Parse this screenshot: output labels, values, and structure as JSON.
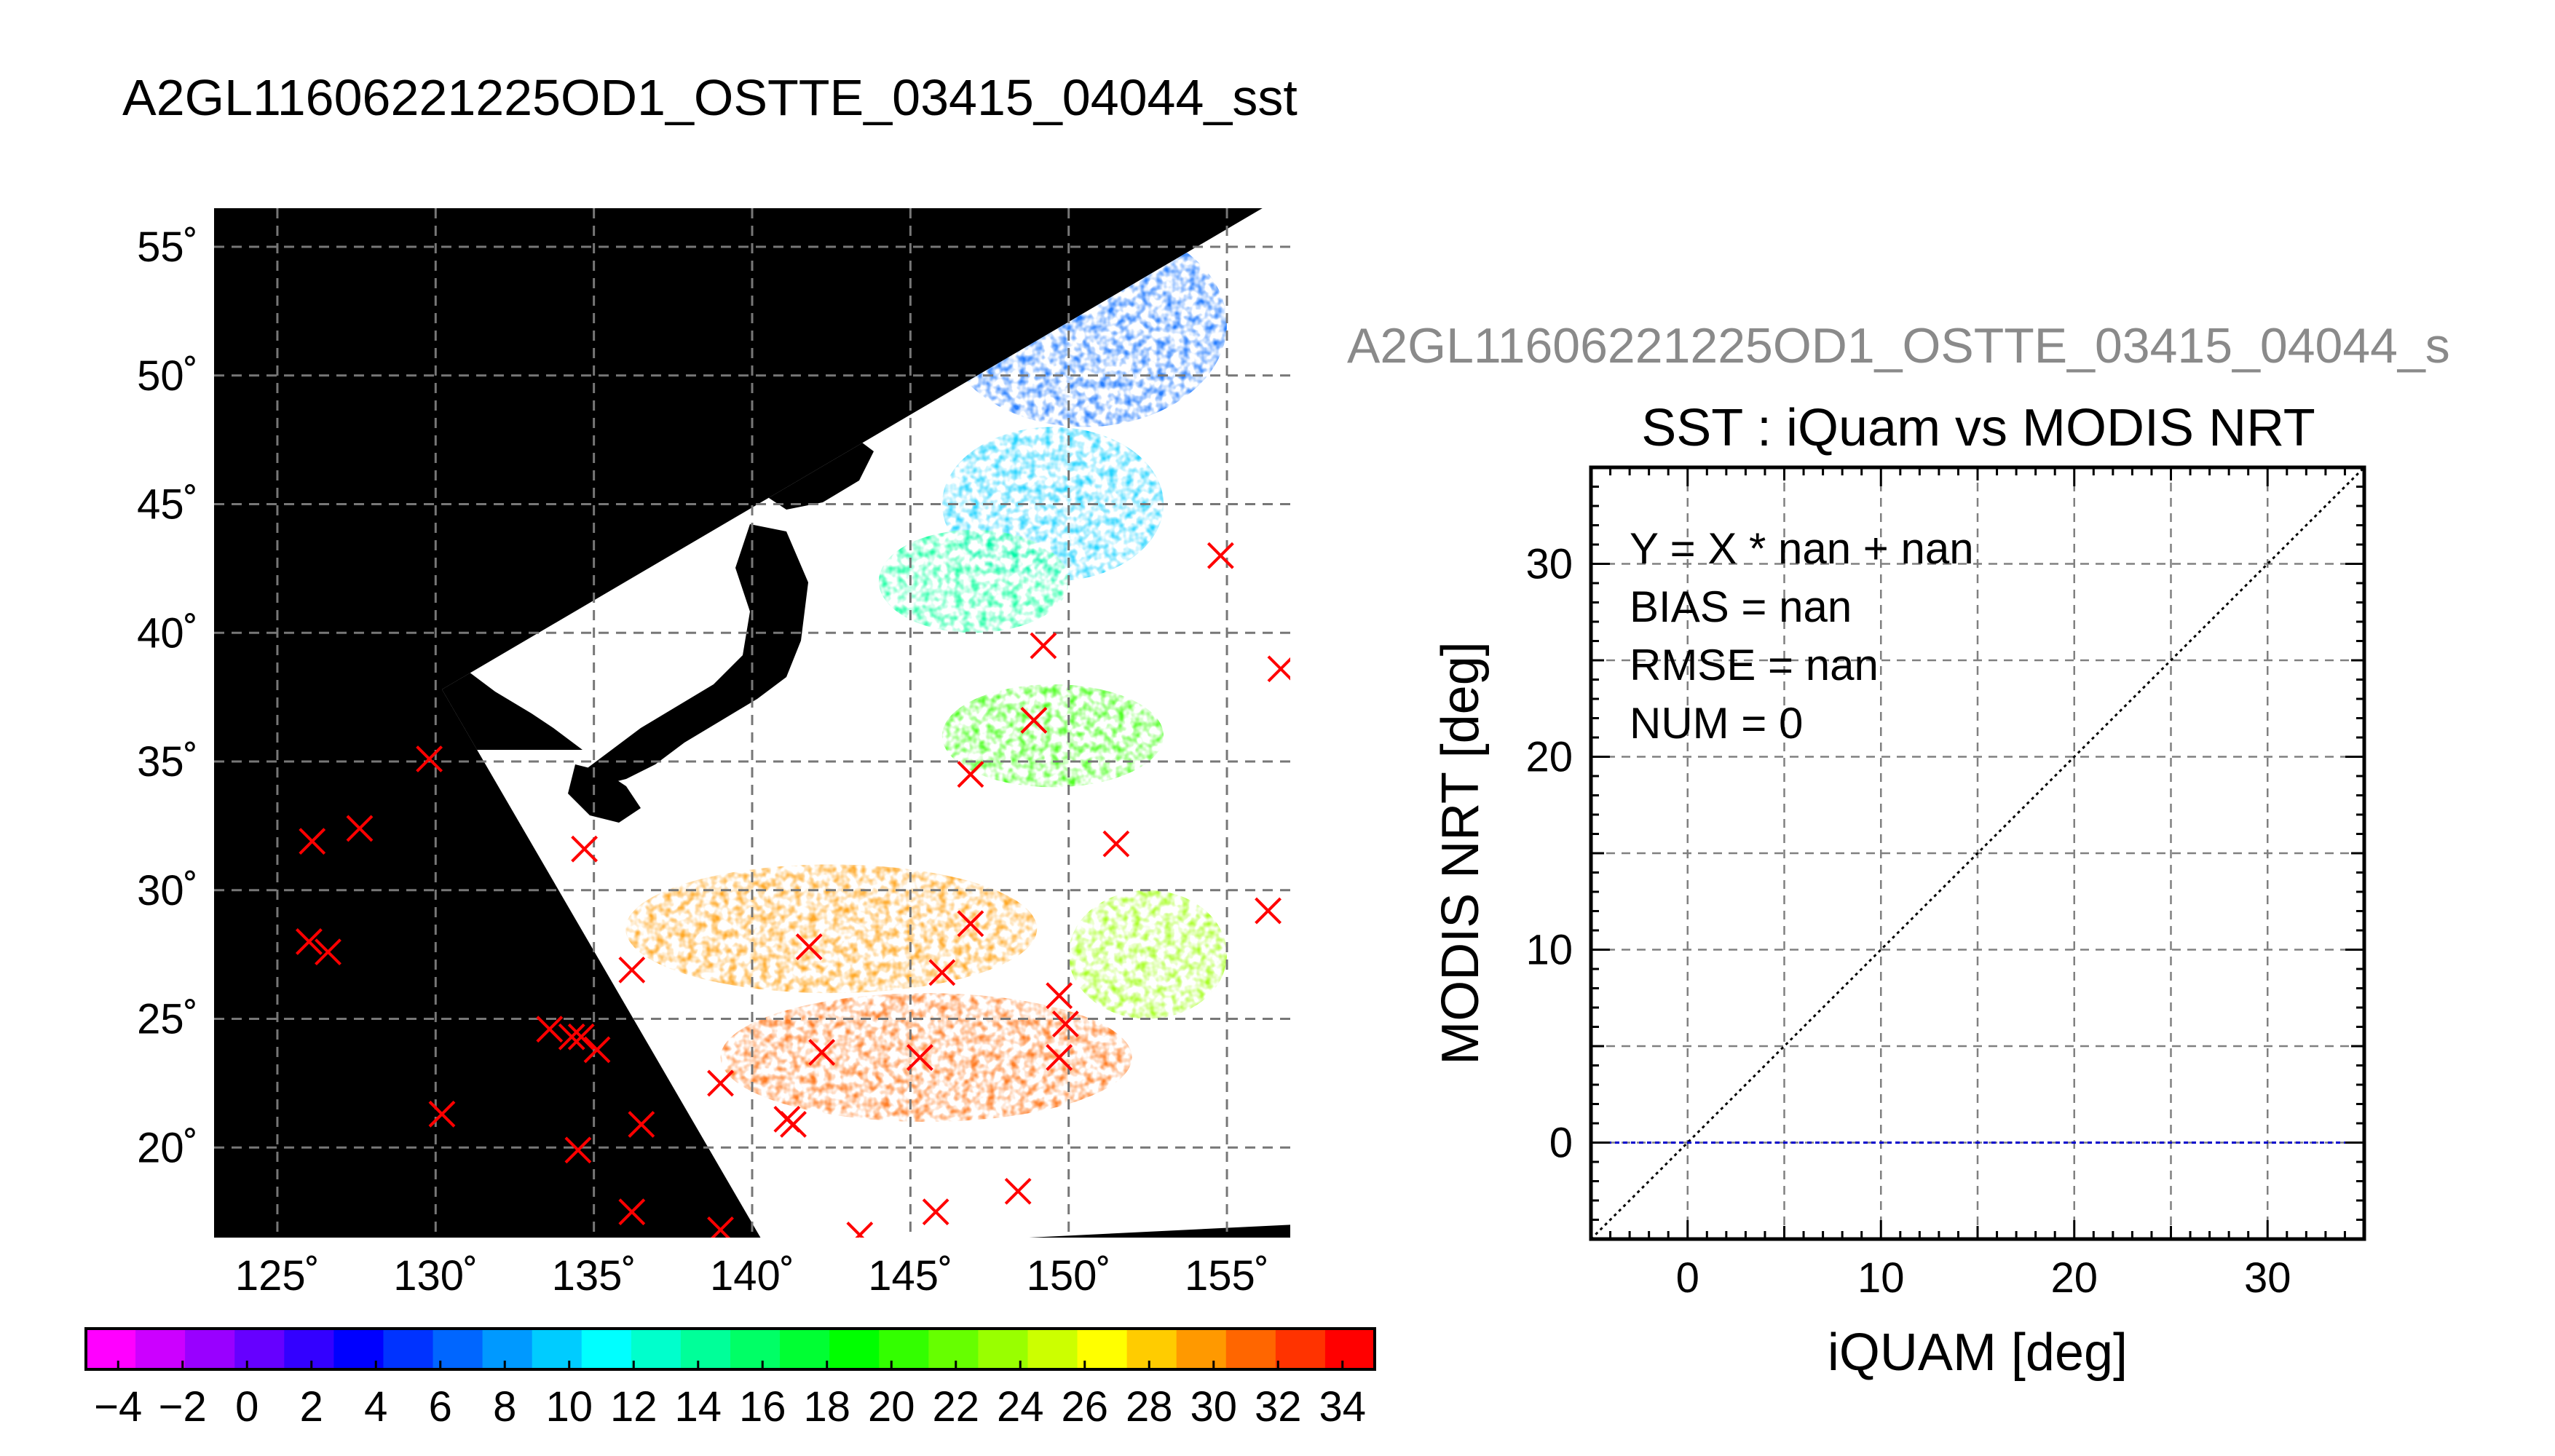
{
  "figure_title": "A2GL11606221225OD1_OSTTE_03415_04044_sst",
  "chart_data": [
    {
      "type": "heatmap",
      "name": "sst-map",
      "title": "",
      "xlabel": "",
      "ylabel": "",
      "xlim": [
        123,
        157
      ],
      "ylim": [
        16.5,
        56.5
      ],
      "grid": true,
      "x_ticks": [
        125,
        130,
        135,
        140,
        145,
        150,
        155
      ],
      "x_tick_labels": [
        "125˚",
        "130˚",
        "135˚",
        "140˚",
        "145˚",
        "150˚",
        "155˚"
      ],
      "y_ticks": [
        20,
        25,
        30,
        35,
        40,
        45,
        50,
        55
      ],
      "y_tick_labels": [
        "20˚",
        "25˚",
        "30˚",
        "35˚",
        "40˚",
        "45˚",
        "50˚",
        "55˚"
      ],
      "colorbar": {
        "range": [
          -5,
          35
        ],
        "step": 2,
        "tick_values": [
          -4,
          -2,
          0,
          2,
          4,
          6,
          8,
          10,
          12,
          14,
          16,
          18,
          20,
          22,
          24,
          26,
          28,
          30,
          32,
          34
        ],
        "tick_labels": [
          "−4",
          "−2",
          "0",
          "2",
          "4",
          "6",
          "8",
          "10",
          "12",
          "14",
          "16",
          "18",
          "20",
          "22",
          "24",
          "26",
          "28",
          "30",
          "32",
          "34"
        ],
        "colors": [
          "#ff00ff",
          "#cc00ff",
          "#9900ff",
          "#6600ff",
          "#3300ff",
          "#0000ff",
          "#0033ff",
          "#0066ff",
          "#0099ff",
          "#00ccff",
          "#00ffff",
          "#00ffcc",
          "#00ff99",
          "#00ff66",
          "#00ff33",
          "#00ff00",
          "#33ff00",
          "#66ff00",
          "#99ff00",
          "#ccff00",
          "#ffff00",
          "#ffcc00",
          "#ff9900",
          "#ff6600",
          "#ff3300",
          "#ff0000"
        ]
      },
      "swath_corners": [
        [
          130.2,
          37.8
        ],
        [
          158.2,
          58.0
        ],
        [
          157.0,
          17.0
        ],
        [
          140.5,
          16.0
        ]
      ],
      "sst_patches": [
        {
          "x": [
            146,
            155
          ],
          "y": [
            48,
            56
          ],
          "sst": 6
        },
        {
          "x": [
            146,
            153
          ],
          "y": [
            42,
            48
          ],
          "sst": 10
        },
        {
          "x": [
            144,
            150
          ],
          "y": [
            40,
            44
          ],
          "sst": 14
        },
        {
          "x": [
            146,
            153
          ],
          "y": [
            34,
            38
          ],
          "sst": 20
        },
        {
          "x": [
            136,
            149
          ],
          "y": [
            26,
            31
          ],
          "sst": 29
        },
        {
          "x": [
            139,
            152
          ],
          "y": [
            21,
            26
          ],
          "sst": 31
        },
        {
          "x": [
            150,
            155
          ],
          "y": [
            25,
            30
          ],
          "sst": 24
        }
      ],
      "iquam_points": {
        "marker": "x",
        "color": "#ff0000",
        "x": [
          154.8,
          156.7,
          149.2,
          148.9,
          146.9,
          151.5,
          129.8,
          127.6,
          126.1,
          134.7,
          156.3,
          126.0,
          126.6,
          136.2,
          141.8,
          146.9,
          146.0,
          149.7,
          149.9,
          133.6,
          134.3,
          134.6,
          135.1,
          142.2,
          145.3,
          149.7,
          139.0,
          130.2,
          136.5,
          141.3,
          141.1,
          134.5,
          136.2,
          139.0,
          143.4,
          145.8,
          148.4
        ],
        "y": [
          43.0,
          38.6,
          39.5,
          36.6,
          34.5,
          31.8,
          35.1,
          32.4,
          31.9,
          31.6,
          29.2,
          28.0,
          27.6,
          26.9,
          27.8,
          28.7,
          26.8,
          25.9,
          24.8,
          24.6,
          24.3,
          24.3,
          23.8,
          23.7,
          23.5,
          23.5,
          22.5,
          21.3,
          20.9,
          20.9,
          21.1,
          19.9,
          17.5,
          16.8,
          16.6,
          17.5,
          18.3
        ]
      }
    },
    {
      "type": "scatter",
      "name": "sst-comparison",
      "panel_file_title": "A2GL11606221225OD1_OSTTE_03415_04044_s",
      "title": "SST : iQuam vs MODIS NRT",
      "xlabel": "iQUAM [deg]",
      "ylabel": "MODIS NRT [deg]",
      "xlim": [
        -5,
        35
      ],
      "ylim": [
        -5,
        35
      ],
      "x_ticks": [
        0,
        10,
        20,
        30
      ],
      "y_ticks": [
        0,
        10,
        20,
        30
      ],
      "grid": true,
      "stats": [
        "Y = X * nan + nan",
        "BIAS = nan",
        "RMSE = nan",
        "NUM = 0"
      ],
      "series": [
        {
          "style": "dotted",
          "color": "#000000",
          "x": [
            -5,
            35
          ],
          "y": [
            -5,
            35
          ]
        },
        {
          "style": "dashed",
          "color": "#0000cc",
          "x": [
            -5,
            35
          ],
          "y": [
            0,
            0
          ]
        }
      ],
      "points": {
        "x": [],
        "y": []
      }
    }
  ]
}
